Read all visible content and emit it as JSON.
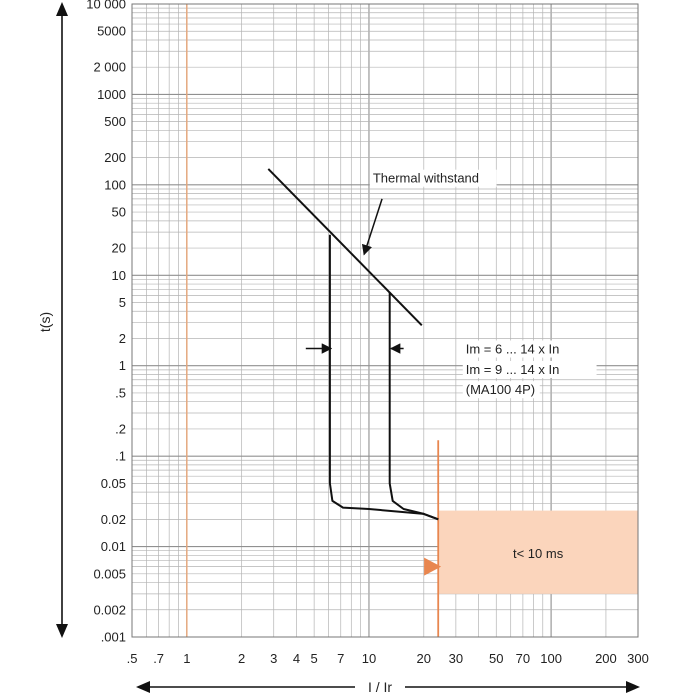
{
  "chart_data": {
    "type": "line",
    "title": "",
    "xlabel": "I / Ir",
    "ylabel": "t(s)",
    "x_scale": "log",
    "y_scale": "log",
    "xlim": [
      0.5,
      300
    ],
    "ylim": [
      0.001,
      10000
    ],
    "x_ticks": [
      {
        "value": 0.5,
        "label": ".5"
      },
      {
        "value": 0.7,
        "label": ".7"
      },
      {
        "value": 1,
        "label": "1"
      },
      {
        "value": 2,
        "label": "2"
      },
      {
        "value": 3,
        "label": "3"
      },
      {
        "value": 4,
        "label": "4"
      },
      {
        "value": 5,
        "label": "5"
      },
      {
        "value": 7,
        "label": "7"
      },
      {
        "value": 10,
        "label": "10"
      },
      {
        "value": 20,
        "label": "20"
      },
      {
        "value": 30,
        "label": "30"
      },
      {
        "value": 50,
        "label": "50"
      },
      {
        "value": 70,
        "label": "70"
      },
      {
        "value": 100,
        "label": "100"
      },
      {
        "value": 200,
        "label": "200"
      },
      {
        "value": 300,
        "label": "300"
      }
    ],
    "y_ticks": [
      {
        "value": 10000,
        "label": "10 000"
      },
      {
        "value": 5000,
        "label": "5000"
      },
      {
        "value": 2000,
        "label": "2 000"
      },
      {
        "value": 1000,
        "label": "1000"
      },
      {
        "value": 500,
        "label": "500"
      },
      {
        "value": 200,
        "label": "200"
      },
      {
        "value": 100,
        "label": "100"
      },
      {
        "value": 50,
        "label": "50"
      },
      {
        "value": 20,
        "label": "20"
      },
      {
        "value": 10,
        "label": "10"
      },
      {
        "value": 5,
        "label": "5"
      },
      {
        "value": 2,
        "label": "2"
      },
      {
        "value": 1,
        "label": "1"
      },
      {
        "value": 0.5,
        "label": ".5"
      },
      {
        "value": 0.2,
        "label": ".2"
      },
      {
        "value": 0.1,
        "label": ".1"
      },
      {
        "value": 0.05,
        "label": "0.05"
      },
      {
        "value": 0.02,
        "label": "0.02"
      },
      {
        "value": 0.01,
        "label": "0.01"
      },
      {
        "value": 0.005,
        "label": "0.005"
      },
      {
        "value": 0.002,
        "label": "0.002"
      },
      {
        "value": 0.001,
        "label": ".001"
      }
    ],
    "grid": true,
    "series": [
      {
        "x": [
          2.8,
          19.5
        ],
        "y": [
          150,
          2.8
        ]
      },
      {
        "x": [
          6.1,
          6.1,
          6.3,
          7.2,
          10,
          20,
          24
        ],
        "y": [
          28,
          0.05,
          0.032,
          0.027,
          0.026,
          0.023,
          0.02
        ]
      },
      {
        "x": [
          13,
          13,
          13.5,
          15.5,
          20,
          24
        ],
        "y": [
          6.5,
          0.05,
          0.032,
          0.026,
          0.023,
          0.02
        ]
      }
    ],
    "reference_line": {
      "x": 1,
      "color": "#e8a77a"
    },
    "highlight_region": {
      "x": [
        24,
        300
      ],
      "y": [
        0.003,
        0.025
      ],
      "color": "#fbd5bc",
      "edge_color": "#e8864f",
      "label": "t< 10 ms"
    },
    "marker": {
      "x": 22.5,
      "y": 0.006,
      "shape": "triangle-right",
      "color": "#e8864f"
    },
    "annotations": [
      {
        "text": "Thermal withstand",
        "x": 10.5,
        "y": 120,
        "arrow_to": [
          9.4,
          17
        ]
      },
      {
        "text": "Im = 6 ... 14 x In",
        "x": 34,
        "y": 1.55,
        "arrow_to": [
          6.2,
          1.55
        ],
        "arrow_from": [
          4.5,
          1.55
        ]
      },
      {
        "text": "Im = 9 ... 14 x In",
        "x": 34,
        "y": 0.92
      },
      {
        "text": "(MA100 4P)",
        "x": 34,
        "y": 0.55
      },
      {
        "text": "",
        "x": 15.5,
        "y": 1.55,
        "arrow_to": [
          13.2,
          1.55
        ]
      }
    ],
    "colors": {
      "curve": "#111111",
      "grid": "#b4b4b4",
      "grid_major": "#909090",
      "accent": "#e8864f",
      "region": "#fbd5bc"
    }
  }
}
